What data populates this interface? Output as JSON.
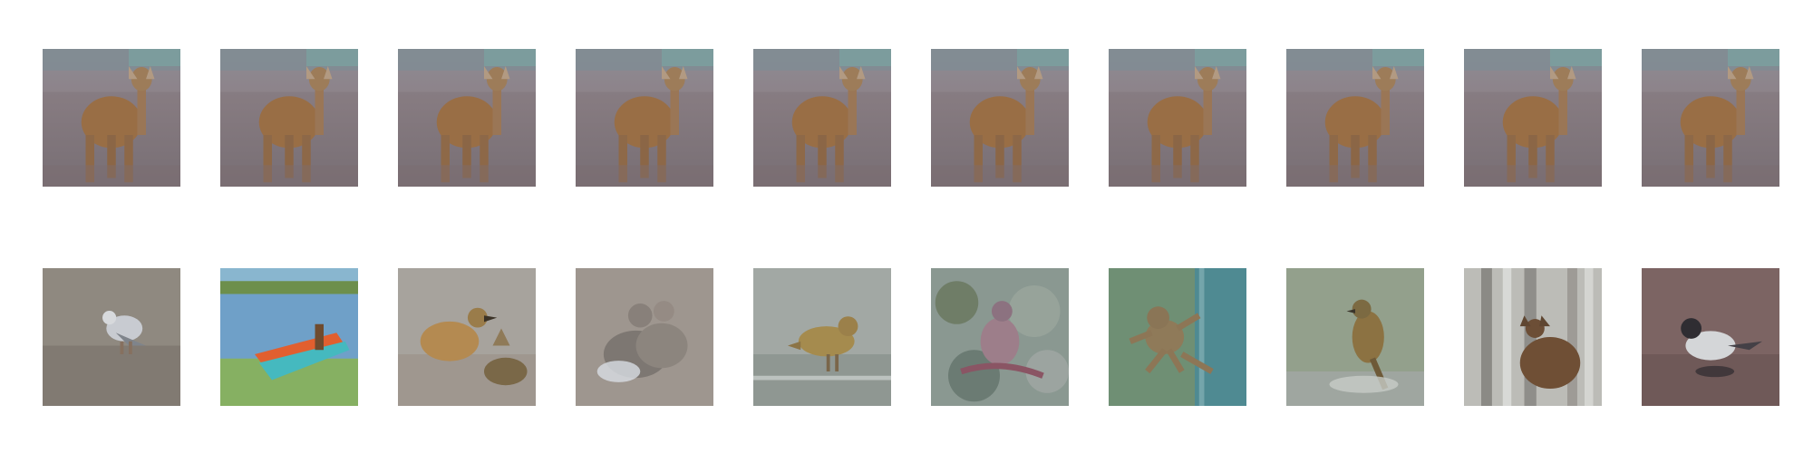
{
  "figure": {
    "rows": [
      {
        "name": "query-row",
        "tiles": [
          {
            "subject": "deer"
          },
          {
            "subject": "deer"
          },
          {
            "subject": "deer"
          },
          {
            "subject": "deer"
          },
          {
            "subject": "deer"
          },
          {
            "subject": "deer"
          },
          {
            "subject": "deer"
          },
          {
            "subject": "deer"
          },
          {
            "subject": "deer"
          },
          {
            "subject": "deer"
          }
        ]
      },
      {
        "name": "result-row",
        "tiles": [
          {
            "subject": "gull-on-sand"
          },
          {
            "subject": "boat-on-shore"
          },
          {
            "subject": "bird-with-object"
          },
          {
            "subject": "blurred-birds"
          },
          {
            "subject": "bird-on-water"
          },
          {
            "subject": "bird-in-foliage"
          },
          {
            "subject": "frog-on-surface"
          },
          {
            "subject": "perched-bird"
          },
          {
            "subject": "deer-in-trees"
          },
          {
            "subject": "wagtail-on-ground"
          }
        ]
      }
    ]
  }
}
